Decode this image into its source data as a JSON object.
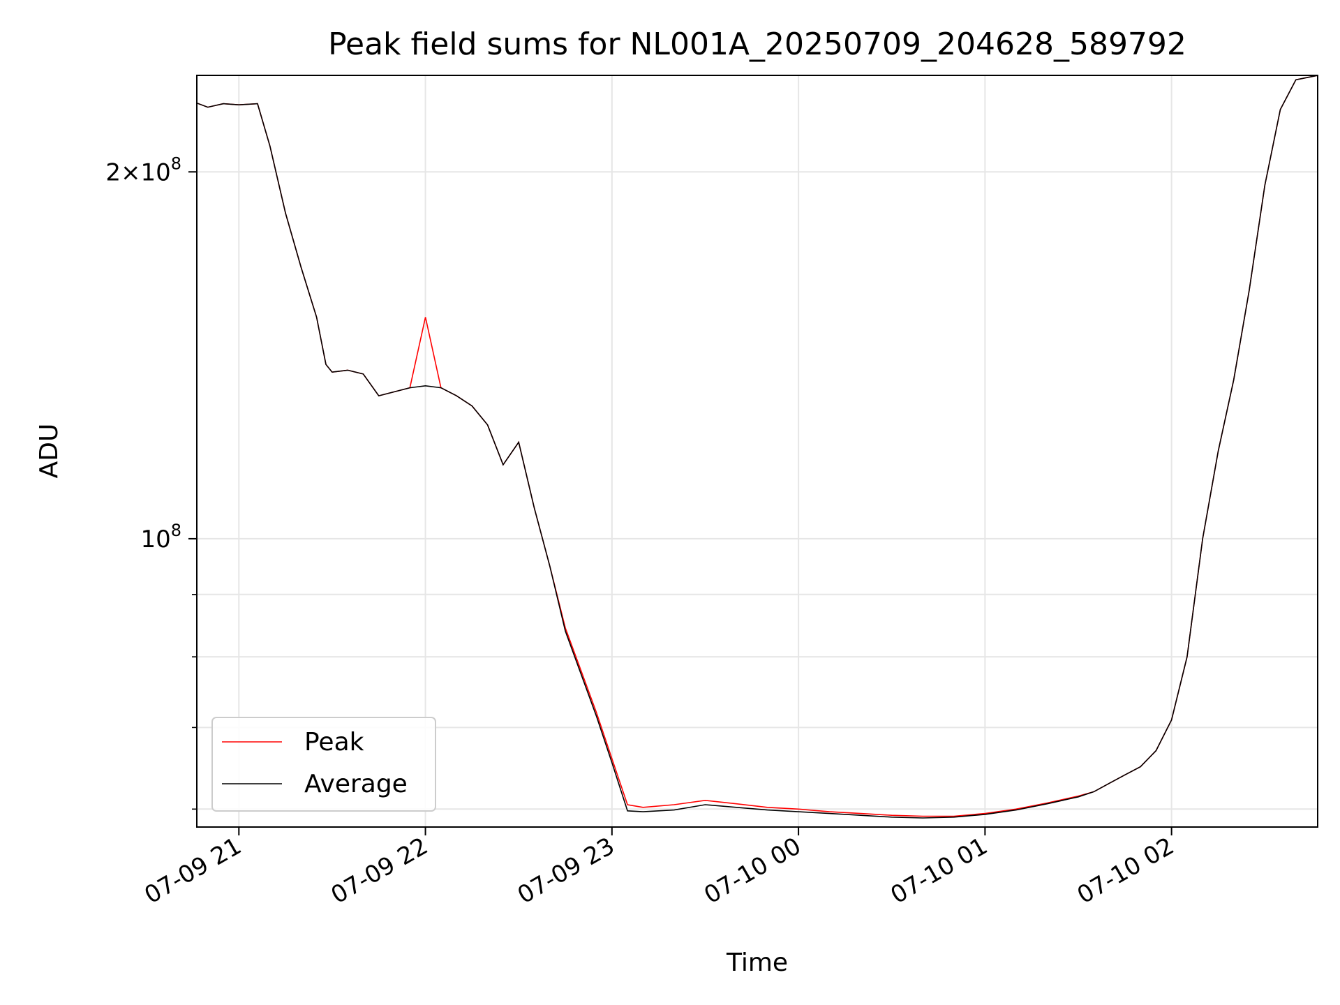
{
  "chart_data": {
    "type": "line",
    "title": "Peak field sums for NL001A_20250709_204628_589792",
    "xlabel": "Time",
    "ylabel": "ADU",
    "y_scale": "log",
    "x_range": [
      "2025-07-09 20:46:28",
      "2025-07-10 02:47:00"
    ],
    "ylim": [
      58000000,
      240000000
    ],
    "x_ticks": [
      {
        "value": "2025-07-09 21:00",
        "label": "07-09 21"
      },
      {
        "value": "2025-07-09 22:00",
        "label": "07-09 22"
      },
      {
        "value": "2025-07-09 23:00",
        "label": "07-09 23"
      },
      {
        "value": "2025-07-10 00:00",
        "label": "07-10 00"
      },
      {
        "value": "2025-07-10 01:00",
        "label": "07-10 01"
      },
      {
        "value": "2025-07-10 02:00",
        "label": "07-10 02"
      }
    ],
    "y_ticks_major": [
      {
        "value": 100000000,
        "base": "10",
        "exp": "8",
        "coef": ""
      },
      {
        "value": 200000000,
        "base": "10",
        "exp": "8",
        "coef": "2"
      }
    ],
    "y_ticks_minor": [
      60000000,
      70000000,
      80000000,
      90000000
    ],
    "grid": true,
    "legend": {
      "placement": "lower-left",
      "entries": [
        "Peak",
        "Average"
      ]
    },
    "series": [
      {
        "name": "Peak",
        "color": "#ff0000"
      },
      {
        "name": "Average",
        "color": "#000000"
      }
    ],
    "x": [
      "2025-07-09 20:46",
      "2025-07-09 20:50",
      "2025-07-09 20:55",
      "2025-07-09 21:00",
      "2025-07-09 21:06",
      "2025-07-09 21:10",
      "2025-07-09 21:15",
      "2025-07-09 21:20",
      "2025-07-09 21:25",
      "2025-07-09 21:28",
      "2025-07-09 21:30",
      "2025-07-09 21:35",
      "2025-07-09 21:40",
      "2025-07-09 21:45",
      "2025-07-09 21:50",
      "2025-07-09 21:55",
      "2025-07-09 22:00",
      "2025-07-09 22:05",
      "2025-07-09 22:10",
      "2025-07-09 22:15",
      "2025-07-09 22:20",
      "2025-07-09 22:25",
      "2025-07-09 22:30",
      "2025-07-09 22:35",
      "2025-07-09 22:40",
      "2025-07-09 22:45",
      "2025-07-09 22:50",
      "2025-07-09 22:55",
      "2025-07-09 23:00",
      "2025-07-09 23:05",
      "2025-07-09 23:10",
      "2025-07-09 23:20",
      "2025-07-09 23:30",
      "2025-07-09 23:40",
      "2025-07-09 23:50",
      "2025-07-10 00:00",
      "2025-07-10 00:10",
      "2025-07-10 00:20",
      "2025-07-10 00:30",
      "2025-07-10 00:40",
      "2025-07-10 00:50",
      "2025-07-10 01:00",
      "2025-07-10 01:10",
      "2025-07-10 01:20",
      "2025-07-10 01:30",
      "2025-07-10 01:35",
      "2025-07-10 01:40",
      "2025-07-10 01:45",
      "2025-07-10 01:50",
      "2025-07-10 01:55",
      "2025-07-10 02:00",
      "2025-07-10 02:05",
      "2025-07-10 02:10",
      "2025-07-10 02:15",
      "2025-07-10 02:20",
      "2025-07-10 02:25",
      "2025-07-10 02:30",
      "2025-07-10 02:35",
      "2025-07-10 02:40",
      "2025-07-10 02:47"
    ],
    "peak_values": [
      228000000,
      226000000,
      227500000,
      227000000,
      227500000,
      210000000,
      185000000,
      167000000,
      152000000,
      139000000,
      137000000,
      137500000,
      136500000,
      131000000,
      132000000,
      133000000,
      152000000,
      133000000,
      131000000,
      128500000,
      124000000,
      115000000,
      120000000,
      106000000,
      95000000,
      84500000,
      78000000,
      72000000,
      66000000,
      60500000,
      60200000,
      60500000,
      61000000,
      60600000,
      60200000,
      60000000,
      59700000,
      59500000,
      59300000,
      59200000,
      59200000,
      59500000,
      60000000,
      60700000,
      61500000,
      62000000,
      63000000,
      64000000,
      65000000,
      67000000,
      71000000,
      80000000,
      100000000,
      118000000,
      135000000,
      160000000,
      195000000,
      225000000,
      238000000,
      240000000
    ],
    "average_values": [
      228000000,
      226000000,
      227500000,
      227000000,
      227500000,
      210000000,
      185000000,
      167000000,
      152000000,
      139000000,
      137000000,
      137500000,
      136500000,
      131000000,
      132000000,
      133000000,
      133500000,
      133000000,
      131000000,
      128500000,
      124000000,
      115000000,
      120000000,
      106000000,
      95000000,
      84000000,
      77500000,
      71500000,
      65500000,
      59800000,
      59700000,
      59900000,
      60500000,
      60200000,
      59900000,
      59700000,
      59500000,
      59300000,
      59100000,
      59000000,
      59100000,
      59400000,
      59900000,
      60600000,
      61400000,
      62000000,
      63000000,
      64000000,
      65000000,
      67000000,
      71000000,
      80000000,
      100000000,
      118000000,
      135000000,
      160000000,
      195000000,
      225000000,
      238000000,
      240000000
    ]
  }
}
